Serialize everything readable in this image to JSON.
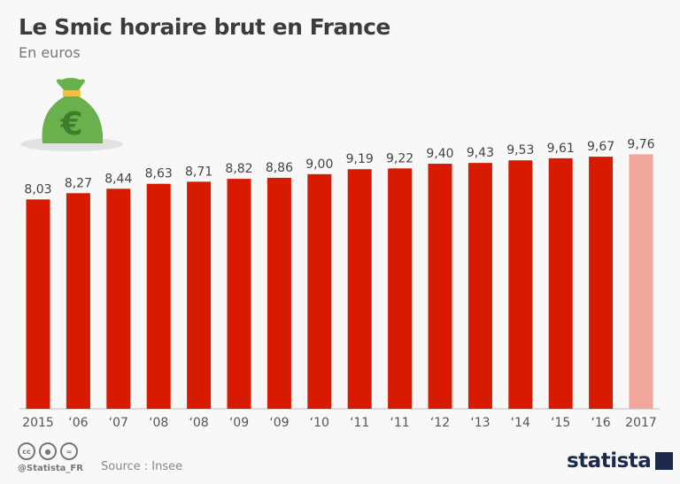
{
  "chart_data": {
    "type": "bar",
    "title": "Le Smic horaire brut en France",
    "subtitle": "En euros",
    "categories": [
      "2015",
      "'06",
      "'07",
      "'08",
      "'08",
      "'09",
      "'09",
      "'10",
      "'11",
      "'11",
      "'12",
      "'13",
      "'14",
      "'15",
      "'16",
      "2017"
    ],
    "values": [
      8.03,
      8.27,
      8.44,
      8.63,
      8.71,
      8.82,
      8.86,
      9.0,
      9.19,
      9.22,
      9.4,
      9.43,
      9.53,
      9.61,
      9.67,
      9.76
    ],
    "data_labels": [
      "8,03",
      "8,27",
      "8,44",
      "8,63",
      "8,71",
      "8,82",
      "8,86",
      "9,00",
      "9,19",
      "9,22",
      "9,40",
      "9,43",
      "9,53",
      "9,61",
      "9,67",
      "9,76"
    ],
    "ylim": [
      0,
      10.25
    ],
    "grid": false,
    "colors": {
      "bar": "#d81a00",
      "highlight_bar": "#f2a599"
    },
    "highlighted_index": 15
  },
  "footer": {
    "handle": "@Statista_FR",
    "source": "Source : Insee",
    "logo": "statista",
    "license_icons": [
      "cc-icon",
      "by-icon",
      "nd-icon"
    ]
  }
}
